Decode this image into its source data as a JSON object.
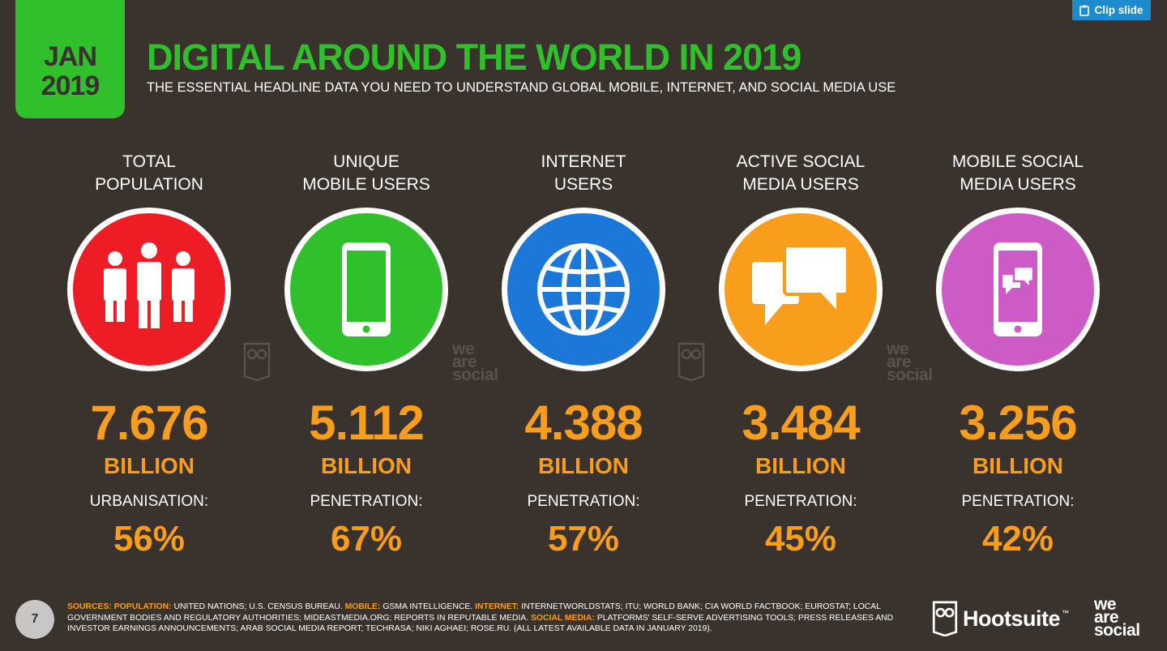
{
  "badge": {
    "month": "JAN",
    "year": "2019"
  },
  "header": {
    "title": "DIGITAL AROUND THE WORLD IN 2019",
    "subtitle": "THE ESSENTIAL HEADLINE DATA YOU NEED TO UNDERSTAND GLOBAL MOBILE, INTERNET, AND SOCIAL MEDIA USE"
  },
  "clip_button": {
    "label": "Clip slide"
  },
  "stats": [
    {
      "label_line1": "TOTAL",
      "label_line2": "POPULATION",
      "icon": "people-icon",
      "color": "#ee1c24",
      "value": "7.676",
      "unit": "BILLION",
      "sub_label": "URBANISATION:",
      "sub_value": "56%"
    },
    {
      "label_line1": "UNIQUE",
      "label_line2": "MOBILE USERS",
      "icon": "mobile-phone-icon",
      "color": "#2fc02c",
      "value": "5.112",
      "unit": "BILLION",
      "sub_label": "PENETRATION:",
      "sub_value": "67%"
    },
    {
      "label_line1": "INTERNET",
      "label_line2": "USERS",
      "icon": "globe-icon",
      "color": "#1c78d8",
      "value": "4.388",
      "unit": "BILLION",
      "sub_label": "PENETRATION:",
      "sub_value": "57%"
    },
    {
      "label_line1": "ACTIVE SOCIAL",
      "label_line2": "MEDIA USERS",
      "icon": "chat-bubbles-icon",
      "color": "#f99d1c",
      "value": "3.484",
      "unit": "BILLION",
      "sub_label": "PENETRATION:",
      "sub_value": "45%"
    },
    {
      "label_line1": "MOBILE SOCIAL",
      "label_line2": "MEDIA USERS",
      "icon": "mobile-chat-icon",
      "color": "#cc5bc5",
      "value": "3.256",
      "unit": "BILLION",
      "sub_label": "PENETRATION:",
      "sub_value": "42%"
    }
  ],
  "watermark": {
    "line1": "we",
    "line2": "are",
    "line3": "social"
  },
  "footer": {
    "page_number": "7",
    "sources": {
      "sources_label": "SOURCES:",
      "population_label": "POPULATION:",
      "population_text": " UNITED NATIONS; U.S. CENSUS BUREAU. ",
      "mobile_label": "MOBILE:",
      "mobile_text": " GSMA INTELLIGENCE. ",
      "internet_label": "INTERNET:",
      "internet_text": " INTERNETWORLDSTATS; ITU; WORLD BANK; CIA WORLD FACTBOOK; EUROSTAT; LOCAL GOVERNMENT BODIES AND REGULATORY AUTHORITIES; MIDEASTMEDIA.ORG; REPORTS IN REPUTABLE MEDIA. ",
      "social_label": "SOCIAL MEDIA:",
      "social_text": " PLATFORMS' SELF-SERVE ADVERTISING TOOLS; PRESS RELEASES AND INVESTOR EARNINGS ANNOUNCEMENTS; ARAB SOCIAL MEDIA REPORT; TECHRASA; NIKI AGHAEI; ROSE.RU. (ALL LATEST AVAILABLE DATA IN JANUARY 2019)."
    },
    "hootsuite": "Hootsuite",
    "trademark": "™",
    "wearesocial": {
      "line1": "we",
      "line2": "are",
      "line3": "social"
    }
  }
}
